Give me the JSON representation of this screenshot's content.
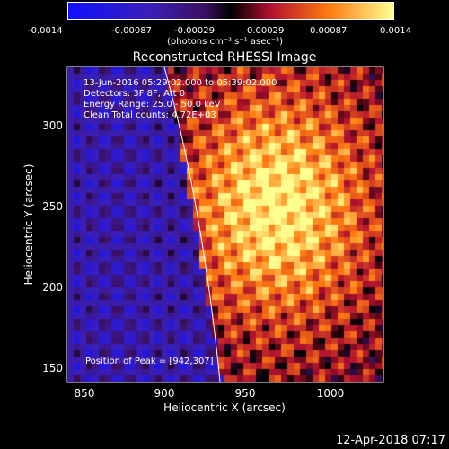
{
  "colorbar": {
    "ticks": [
      "-0.0014",
      "-0.00087",
      "-0.00029",
      "0.00029",
      "0.00087",
      "0.0014"
    ],
    "units": "(photons cm⁻² s⁻¹ asec⁻²)"
  },
  "plot": {
    "title": "Reconstructed RHESSI Image",
    "info_line_1": "13-Jun-2016 05:29:02.000 to 05:39:02.000",
    "info_line_2": "Detectors: 3F 8F, Att 0",
    "info_line_3": "Energy Range: 25.0 - 50.0 keV",
    "info_line_4": "Clean     Total counts: 4.72E+03",
    "peak_label": "Position of Peak = [942,307]",
    "xlabel": "Heliocentric X (arcsec)",
    "ylabel": "Heliocentric Y (arcsec)",
    "xticks": [
      "850",
      "900",
      "950",
      "1000"
    ],
    "yticks": [
      "300",
      "250",
      "200",
      "150"
    ]
  },
  "footer": {
    "timestamp": "12-Apr-2018 07:17"
  },
  "colors": {
    "background": "#000000",
    "text": "#ffffff",
    "limb": "#ffffff"
  }
}
